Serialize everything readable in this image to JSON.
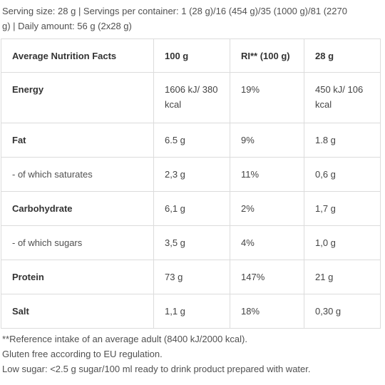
{
  "intro": {
    "line1": "Serving size: 28 g | Servings per container: 1 (28 g)/16 (454 g)/35 (1000 g)/81 (2270",
    "line2": "g) | Daily amount: 56 g (2x28 g)"
  },
  "table": {
    "headers": [
      "Average Nutrition Facts",
      "100 g",
      "RI** (100 g)",
      "28 g"
    ],
    "rows": [
      {
        "label": "Energy",
        "per100": "1606 kJ/ 380 kcal",
        "ri": "19%",
        "per28": "450 kJ/ 106 kcal"
      },
      {
        "label": "Fat",
        "per100": "6.5 g",
        "ri": "9%",
        "per28": "1.8 g"
      },
      {
        "label": "- of which saturates",
        "per100": "2,3 g",
        "ri": "11%",
        "per28": "0,6 g"
      },
      {
        "label": "Carbohydrate",
        "per100": "6,1 g",
        "ri": "2%",
        "per28": "1,7 g"
      },
      {
        "label": "- of which sugars",
        "per100": "3,5 g",
        "ri": "4%",
        "per28": "1,0 g"
      },
      {
        "label": "Protein",
        "per100": "73 g",
        "ri": "147%",
        "per28": "21 g"
      },
      {
        "label": "Salt",
        "per100": "1,1 g",
        "ri": "18%",
        "per28": "0,30 g"
      }
    ]
  },
  "notes": [
    "**Reference intake of an average adult (8400 kJ/2000 kcal).",
    "Gluten free according to EU regulation.",
    "Low sugar: <2.5 g sugar/100 ml ready to drink product prepared with water."
  ]
}
